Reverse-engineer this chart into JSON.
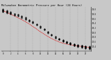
{
  "title": "Milwaukee Barometric Pressure per Hour (24 Hours)",
  "title_fontsize": 2.8,
  "hours": [
    0,
    1,
    2,
    3,
    4,
    5,
    6,
    7,
    8,
    9,
    10,
    11,
    12,
    13,
    14,
    15,
    16,
    17,
    18,
    19,
    20,
    21,
    22,
    23
  ],
  "pressure_base": [
    29.95,
    29.9,
    29.85,
    29.78,
    29.75,
    29.68,
    29.6,
    29.52,
    29.45,
    29.35,
    29.25,
    29.14,
    29.02,
    28.9,
    28.8,
    28.72,
    28.65,
    28.58,
    28.52,
    28.47,
    28.43,
    28.4,
    28.37,
    28.35
  ],
  "scatter_offsets": [
    [
      0.0,
      0.02,
      -0.02,
      0.04,
      -0.04,
      0.06,
      -0.06,
      0.01,
      -0.01,
      0.03
    ],
    [
      0.0,
      0.02,
      -0.02,
      0.03,
      -0.03,
      0.05,
      -0.05,
      0.01,
      -0.01
    ],
    [
      0.0,
      0.015,
      -0.015,
      0.03,
      -0.03,
      0.04,
      -0.04
    ],
    [
      0.0,
      0.02,
      -0.02,
      0.04,
      -0.04
    ],
    [
      0.0,
      0.02,
      -0.02,
      0.03,
      -0.03
    ],
    [
      0.0,
      0.02,
      -0.02,
      0.04,
      -0.04
    ],
    [
      0.0,
      0.02,
      -0.02,
      0.03,
      -0.03,
      0.05
    ],
    [
      0.0,
      0.02,
      -0.02,
      0.03,
      -0.03
    ],
    [
      0.0,
      0.015,
      -0.015,
      0.03,
      -0.03
    ],
    [
      0.0,
      0.02,
      -0.02,
      0.03
    ],
    [
      0.0,
      0.02,
      -0.02,
      0.03,
      -0.03
    ],
    [
      0.0,
      0.02,
      -0.02,
      0.03
    ],
    [
      0.0,
      0.02,
      -0.02,
      0.03,
      -0.03
    ],
    [
      0.0,
      0.015,
      -0.015,
      0.025
    ],
    [
      0.0,
      0.02,
      -0.02,
      0.03,
      -0.03
    ],
    [
      0.0,
      0.015,
      -0.015,
      0.025,
      -0.025
    ],
    [
      0.0,
      0.01,
      -0.01,
      0.02,
      -0.02,
      0.03,
      -0.03
    ],
    [
      0.0,
      0.01,
      -0.01,
      0.02,
      -0.02,
      0.03,
      -0.03
    ],
    [
      0.0,
      0.01,
      -0.01,
      0.02,
      -0.02,
      0.03,
      -0.03,
      0.04
    ],
    [
      0.0,
      0.01,
      -0.01,
      0.02,
      -0.02,
      0.03,
      -0.03,
      0.04,
      -0.04
    ],
    [
      0.0,
      0.01,
      -0.01,
      0.02,
      -0.02,
      0.03,
      -0.03,
      0.04,
      -0.04
    ],
    [
      0.0,
      0.01,
      -0.01,
      0.02,
      -0.02,
      0.03,
      -0.03,
      0.04,
      -0.04,
      0.05
    ],
    [
      0.0,
      0.01,
      -0.01,
      0.02,
      -0.02,
      0.03,
      -0.03,
      0.04,
      -0.04,
      0.05,
      -0.05
    ],
    [
      0.0,
      0.01,
      -0.01,
      0.02,
      -0.02,
      0.03,
      -0.03,
      0.04,
      -0.04,
      0.05,
      -0.05
    ]
  ],
  "smooth": [
    29.95,
    29.88,
    29.8,
    29.72,
    29.64,
    29.56,
    29.47,
    29.37,
    29.26,
    29.15,
    29.03,
    28.93,
    28.83,
    28.74,
    28.66,
    28.59,
    28.54,
    28.5,
    28.47,
    28.44,
    28.42,
    28.4,
    28.38,
    28.36
  ],
  "dot_color": "#000000",
  "line_color": "#dd0000",
  "grid_color": "#999999",
  "bg_color": "#c8c8c8",
  "plot_bg_color": "#c8c8c8",
  "ylim": [
    28.2,
    30.1
  ],
  "yticks": [
    28.4,
    28.6,
    28.8,
    29.0,
    29.2,
    29.4,
    29.6,
    29.8,
    30.0
  ],
  "ytick_labels": [
    "28.4",
    "28.6",
    "28.8",
    "29.0",
    "29.2",
    "29.4",
    "29.6",
    "29.8",
    "30.0"
  ],
  "xtick_hours": [
    0,
    2,
    4,
    6,
    8,
    10,
    12,
    14,
    16,
    18,
    20,
    22
  ],
  "xtick_labels": [
    "0",
    "2",
    "4",
    "6",
    "8",
    "10",
    "12",
    "14",
    "16",
    "18",
    "20",
    "22"
  ],
  "vgrid_hours": [
    2,
    4,
    6,
    8,
    10,
    12,
    14,
    16,
    18,
    20,
    22
  ]
}
